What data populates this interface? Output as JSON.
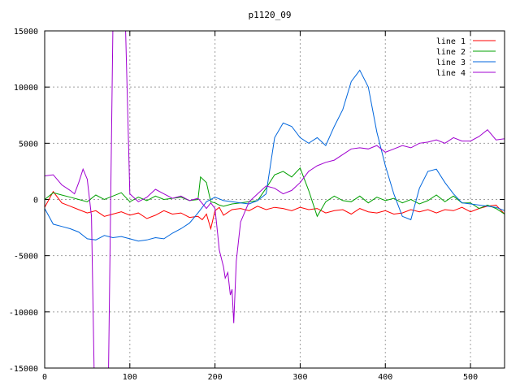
{
  "chart_data": {
    "type": "line",
    "title": "p1120_09",
    "xlabel": "",
    "ylabel": "",
    "xlim": [
      0,
      540
    ],
    "ylim": [
      -15000,
      15000
    ],
    "x_ticks": [
      0,
      100,
      200,
      300,
      400,
      500
    ],
    "y_ticks": [
      -15000,
      -10000,
      -5000,
      0,
      5000,
      10000,
      15000
    ],
    "grid": true,
    "legend_position": "top-right",
    "series": [
      {
        "name": "line 1",
        "color": "#ff0000",
        "x": [
          0,
          10,
          20,
          30,
          40,
          50,
          60,
          70,
          80,
          90,
          100,
          110,
          120,
          130,
          140,
          150,
          160,
          170,
          180,
          185,
          190,
          195,
          200,
          205,
          210,
          220,
          230,
          240,
          250,
          260,
          270,
          280,
          290,
          300,
          310,
          320,
          330,
          340,
          350,
          360,
          370,
          380,
          390,
          400,
          410,
          420,
          430,
          440,
          450,
          460,
          470,
          480,
          490,
          500,
          510,
          520,
          530,
          540
        ],
        "values": [
          -700,
          700,
          -300,
          -600,
          -900,
          -1200,
          -1000,
          -1500,
          -1300,
          -1100,
          -1400,
          -1200,
          -1700,
          -1400,
          -1000,
          -1300,
          -1200,
          -1600,
          -1500,
          -1800,
          -1300,
          -2600,
          -1000,
          -700,
          -1400,
          -900,
          -800,
          -1000,
          -600,
          -900,
          -700,
          -800,
          -1000,
          -700,
          -900,
          -800,
          -1200,
          -1000,
          -900,
          -1300,
          -800,
          -1100,
          -1200,
          -1000,
          -1300,
          -1200,
          -900,
          -1100,
          -900,
          -1200,
          -900,
          -1000,
          -700,
          -1100,
          -800,
          -600,
          -500,
          -1300
        ]
      },
      {
        "name": "line 2",
        "color": "#00a000",
        "x": [
          0,
          10,
          20,
          30,
          40,
          50,
          60,
          70,
          80,
          90,
          100,
          110,
          120,
          130,
          140,
          150,
          160,
          170,
          180,
          183,
          190,
          195,
          200,
          205,
          210,
          220,
          230,
          240,
          250,
          260,
          270,
          280,
          290,
          300,
          310,
          320,
          330,
          340,
          350,
          360,
          370,
          380,
          390,
          400,
          410,
          420,
          430,
          440,
          450,
          460,
          470,
          480,
          490,
          500,
          510,
          520,
          530,
          540
        ],
        "values": [
          0,
          600,
          400,
          200,
          0,
          -200,
          400,
          0,
          300,
          600,
          -200,
          200,
          -100,
          300,
          0,
          100,
          200,
          -100,
          0,
          2000,
          1500,
          -200,
          -300,
          -500,
          -600,
          -400,
          -300,
          -200,
          -100,
          1000,
          2200,
          2500,
          2000,
          2800,
          800,
          -1500,
          -200,
          300,
          -100,
          -200,
          300,
          -300,
          200,
          -100,
          100,
          -300,
          0,
          -400,
          -100,
          400,
          -200,
          300,
          -300,
          -300,
          -800,
          -500,
          -800,
          -1300
        ]
      },
      {
        "name": "line 3",
        "color": "#0066dd",
        "x": [
          0,
          10,
          20,
          30,
          40,
          50,
          60,
          70,
          80,
          90,
          100,
          110,
          120,
          130,
          140,
          150,
          160,
          170,
          180,
          190,
          200,
          210,
          220,
          230,
          240,
          250,
          260,
          270,
          280,
          290,
          300,
          310,
          320,
          330,
          340,
          350,
          360,
          370,
          380,
          390,
          400,
          410,
          420,
          430,
          440,
          450,
          460,
          470,
          480,
          490,
          500,
          510,
          520,
          530,
          540
        ],
        "values": [
          -800,
          -2200,
          -2400,
          -2600,
          -2900,
          -3500,
          -3600,
          -3200,
          -3400,
          -3300,
          -3500,
          -3700,
          -3600,
          -3400,
          -3500,
          -3000,
          -2600,
          -2100,
          -1200,
          -200,
          200,
          -100,
          -200,
          -300,
          -400,
          -100,
          500,
          5500,
          6800,
          6500,
          5500,
          5000,
          5500,
          4800,
          6500,
          8000,
          10500,
          11500,
          10000,
          6000,
          3000,
          500,
          -1500,
          -1800,
          1000,
          2500,
          2700,
          1500,
          500,
          -300,
          -400,
          -500,
          -600,
          -700,
          -1000
        ]
      },
      {
        "name": "line 4",
        "color": "#a000d0",
        "x": [
          0,
          10,
          20,
          30,
          35,
          40,
          45,
          50,
          55,
          58,
          60,
          65,
          70,
          75,
          80,
          85,
          90,
          95,
          100,
          110,
          120,
          130,
          140,
          150,
          160,
          170,
          180,
          190,
          195,
          200,
          203,
          205,
          210,
          212,
          215,
          218,
          220,
          222,
          225,
          230,
          240,
          250,
          260,
          270,
          280,
          290,
          300,
          310,
          320,
          330,
          340,
          350,
          360,
          370,
          380,
          390,
          400,
          410,
          420,
          430,
          440,
          450,
          460,
          470,
          480,
          490,
          500,
          510,
          520,
          530,
          540
        ],
        "values": [
          2100,
          2200,
          1300,
          800,
          500,
          1500,
          2700,
          1800,
          -1500,
          -15000,
          -15000,
          -15000,
          -15000,
          -15000,
          15000,
          15000,
          15000,
          15000,
          500,
          -200,
          200,
          900,
          500,
          100,
          300,
          -100,
          100,
          -800,
          -300,
          -800,
          -3000,
          -4500,
          -6000,
          -7000,
          -6500,
          -8500,
          -8000,
          -11000,
          -5500,
          -2000,
          -200,
          500,
          1200,
          1000,
          500,
          800,
          1500,
          2500,
          3000,
          3300,
          3500,
          4000,
          4500,
          4600,
          4500,
          4800,
          4200,
          4500,
          4800,
          4600,
          5000,
          5100,
          5300,
          5000,
          5500,
          5200,
          5200,
          5600,
          6200,
          5300,
          5400
        ]
      }
    ]
  }
}
